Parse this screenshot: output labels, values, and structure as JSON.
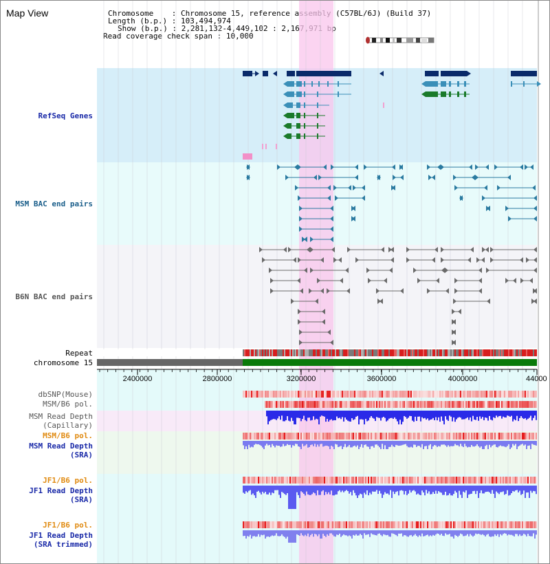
{
  "title": "Map View",
  "info": {
    "chromosome_label": "Chromosome",
    "chromosome_value": "Chromosome 15, reference assembly (C57BL/6J) (Build 37)",
    "length_label": "Length (b.p.)",
    "length_value": "103,494,974",
    "show_label": "Show (b.p.)",
    "show_value": "2,281,132-4,449,102 : 2,167,971 bp",
    "coverage_label": "Read coverage check span",
    "coverage_value": "10,000"
  },
  "upper_tracks": {
    "refseq": "RefSeq Genes",
    "msm_bac": "MSM BAC end pairs",
    "b6n_bac": "B6N BAC end pairs"
  },
  "ruler": {
    "repeat_label": "Repeat",
    "chromosome_label": "chromosome 15",
    "ticks": [
      "2400000",
      "2800000",
      "3200000",
      "3600000",
      "4000000",
      "44000"
    ]
  },
  "lower_tracks": {
    "dbsnp": "dbSNP(Mouse)",
    "msm_b6_pol_1": "MSM/B6 pol.",
    "msm_read_depth_cap_1": "MSM Read Depth",
    "msm_read_depth_cap_2": "(Capillary)",
    "msm_b6_pol_2": "MSM/B6 pol.",
    "msm_read_depth_sra_1": "MSM Read Depth",
    "msm_read_depth_sra_2": "(SRA)",
    "jf1_b6_pol_1": "JF1/B6 pol.",
    "jf1_read_depth_sra_1": "JF1 Read Depth",
    "jf1_read_depth_sra_2": "(SRA)",
    "jf1_b6_pol_2": "JF1/B6 pol.",
    "jf1_read_depth_trim_1": "JF1 Read Depth",
    "jf1_read_depth_trim_2": "(SRA trimmed)"
  },
  "colors": {
    "refseq_bg": "#d6eef9",
    "bac_bg": "#e8fbfb",
    "b6n_bg": "#f4f4f8",
    "highlight": "#f9c6ec",
    "gene_dark": "#0a2a6a",
    "gene_teal": "#3a8fb8",
    "gene_green": "#1a7a2a",
    "chromosome_gray": "#666666",
    "chromosome_green": "#0a7a0a",
    "depth_blue": "#2a2ae8",
    "depth_lightblue": "#7a7af0",
    "pol_red": "#e23a3a"
  }
}
